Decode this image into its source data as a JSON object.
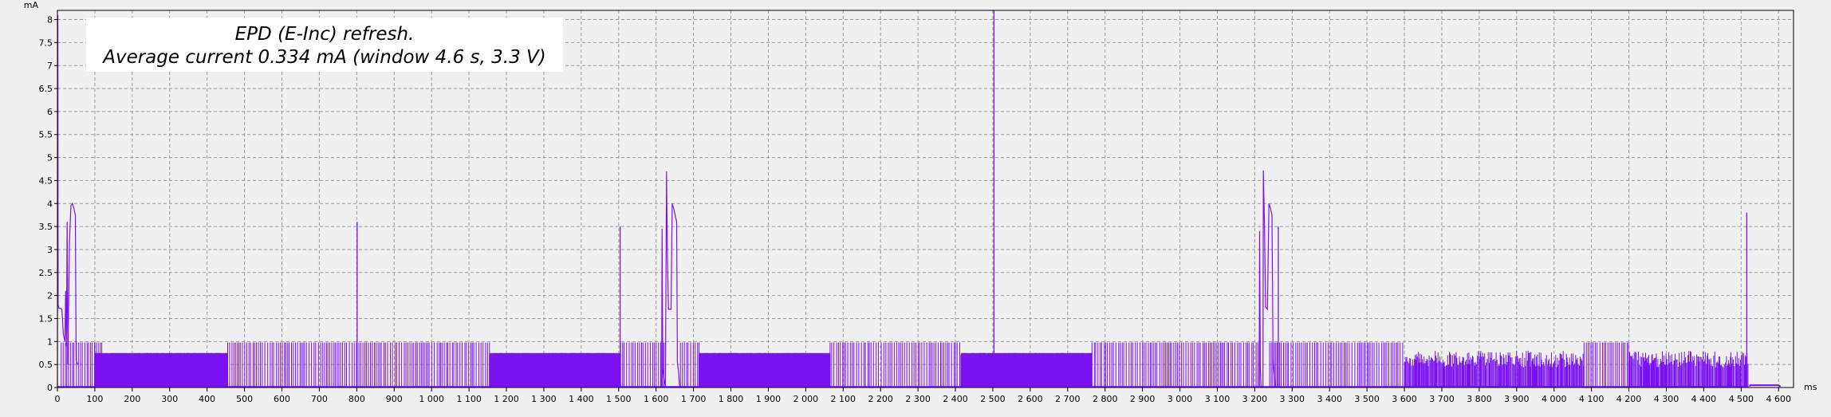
{
  "chart_data": {
    "type": "line",
    "title_line1": "EPD (E-Inc) refresh.",
    "title_line2": "Average current 0.334 mA (window 4.6 s, 3.3 V)",
    "ylabel": "mA",
    "xlabel": "ms",
    "xlim": [
      0,
      4640
    ],
    "ylim": [
      0,
      8.2
    ],
    "grid": true,
    "colors": {
      "series": "#7b11f0",
      "axis": "#000000",
      "grid": "#9a9a9a",
      "plot_bg": "#f0f0f0"
    },
    "y_ticks": [
      {
        "value": 0,
        "label": "0"
      },
      {
        "value": 0.5,
        "label": "0.5"
      },
      {
        "value": 1,
        "label": "1"
      },
      {
        "value": 1.5,
        "label": "1.5"
      },
      {
        "value": 2,
        "label": "2"
      },
      {
        "value": 2.5,
        "label": "2.5"
      },
      {
        "value": 3,
        "label": "3"
      },
      {
        "value": 3.5,
        "label": "3.5"
      },
      {
        "value": 4,
        "label": "4"
      },
      {
        "value": 4.5,
        "label": "4.5"
      },
      {
        "value": 5,
        "label": "5"
      },
      {
        "value": 5.5,
        "label": "5.5"
      },
      {
        "value": 6,
        "label": "6"
      },
      {
        "value": 6.5,
        "label": "6.5"
      },
      {
        "value": 7,
        "label": "7"
      },
      {
        "value": 7.5,
        "label": "7.5"
      },
      {
        "value": 8,
        "label": "8"
      }
    ],
    "x_ticks": [
      {
        "value": 0,
        "label": "0"
      },
      {
        "value": 100,
        "label": "100"
      },
      {
        "value": 200,
        "label": "200"
      },
      {
        "value": 300,
        "label": "300"
      },
      {
        "value": 400,
        "label": "400"
      },
      {
        "value": 500,
        "label": "500"
      },
      {
        "value": 600,
        "label": "600"
      },
      {
        "value": 700,
        "label": "700"
      },
      {
        "value": 800,
        "label": "800"
      },
      {
        "value": 900,
        "label": "900"
      },
      {
        "value": 1000,
        "label": "1 000"
      },
      {
        "value": 1100,
        "label": "1 100"
      },
      {
        "value": 1200,
        "label": "1 200"
      },
      {
        "value": 1300,
        "label": "1 300"
      },
      {
        "value": 1400,
        "label": "1 400"
      },
      {
        "value": 1500,
        "label": "1 500"
      },
      {
        "value": 1600,
        "label": "1 600"
      },
      {
        "value": 1700,
        "label": "1 700"
      },
      {
        "value": 1800,
        "label": "1 800"
      },
      {
        "value": 1900,
        "label": "1 900"
      },
      {
        "value": 2000,
        "label": "2 000"
      },
      {
        "value": 2100,
        "label": "2 100"
      },
      {
        "value": 2200,
        "label": "2 200"
      },
      {
        "value": 2300,
        "label": "2 300"
      },
      {
        "value": 2400,
        "label": "2 400"
      },
      {
        "value": 2500,
        "label": "2 500"
      },
      {
        "value": 2600,
        "label": "2 600"
      },
      {
        "value": 2700,
        "label": "2 700"
      },
      {
        "value": 2800,
        "label": "2 800"
      },
      {
        "value": 2900,
        "label": "2 900"
      },
      {
        "value": 3000,
        "label": "3 000"
      },
      {
        "value": 3100,
        "label": "3 100"
      },
      {
        "value": 3200,
        "label": "3 200"
      },
      {
        "value": 3300,
        "label": "3 300"
      },
      {
        "value": 3400,
        "label": "3 400"
      },
      {
        "value": 3500,
        "label": "3 500"
      },
      {
        "value": 3600,
        "label": "3 600"
      },
      {
        "value": 3700,
        "label": "3 700"
      },
      {
        "value": 3800,
        "label": "3 800"
      },
      {
        "value": 3900,
        "label": "3 900"
      },
      {
        "value": 4000,
        "label": "4 000"
      },
      {
        "value": 4100,
        "label": "4 100"
      },
      {
        "value": 4200,
        "label": "4 200"
      },
      {
        "value": 4300,
        "label": "4 300"
      },
      {
        "value": 4400,
        "label": "4 400"
      },
      {
        "value": 4500,
        "label": "4 500"
      },
      {
        "value": 4600,
        "label": "4 600"
      }
    ],
    "series": [
      {
        "baseline_mA": 0.02,
        "pulse_trains": [
          {
            "start_ms": 10,
            "end_ms": 120,
            "low_mA": 0.02,
            "high_mA": 0.98,
            "density": "sparse"
          },
          {
            "start_ms": 100,
            "end_ms": 455,
            "low_mA": 0.02,
            "high_mA": 0.75,
            "density": "dense"
          },
          {
            "start_ms": 455,
            "end_ms": 1155,
            "low_mA": 0.02,
            "high_mA": 0.98,
            "density": "sparse"
          },
          {
            "start_ms": 1155,
            "end_ms": 1505,
            "low_mA": 0.02,
            "high_mA": 0.75,
            "density": "dense"
          },
          {
            "start_ms": 1505,
            "end_ms": 1625,
            "low_mA": 0.02,
            "high_mA": 0.98,
            "density": "sparse"
          },
          {
            "start_ms": 1665,
            "end_ms": 1715,
            "low_mA": 0.02,
            "high_mA": 0.98,
            "density": "sparse"
          },
          {
            "start_ms": 1715,
            "end_ms": 2065,
            "low_mA": 0.02,
            "high_mA": 0.75,
            "density": "dense"
          },
          {
            "start_ms": 2065,
            "end_ms": 2415,
            "low_mA": 0.02,
            "high_mA": 0.98,
            "density": "sparse"
          },
          {
            "start_ms": 2415,
            "end_ms": 2765,
            "low_mA": 0.02,
            "high_mA": 0.75,
            "density": "dense"
          },
          {
            "start_ms": 2765,
            "end_ms": 3215,
            "low_mA": 0.02,
            "high_mA": 0.98,
            "density": "sparse"
          },
          {
            "start_ms": 3240,
            "end_ms": 3600,
            "low_mA": 0.02,
            "high_mA": 0.98,
            "density": "sparse"
          },
          {
            "start_ms": 3600,
            "end_ms": 4080,
            "low_mA": 0.02,
            "high_mA": 0.8,
            "density": "medium"
          },
          {
            "start_ms": 4080,
            "end_ms": 4200,
            "low_mA": 0.02,
            "high_mA": 0.98,
            "density": "sparse"
          },
          {
            "start_ms": 4200,
            "end_ms": 4520,
            "low_mA": 0.02,
            "high_mA": 0.8,
            "density": "medium"
          }
        ],
        "segments": [
          [
            [
              0,
              0.02
            ],
            [
              1,
              8.1
            ],
            [
              2,
              1.8
            ],
            [
              4,
              1.72
            ],
            [
              8,
              1.72
            ],
            [
              12,
              1.7
            ],
            [
              16,
              1.15
            ],
            [
              20,
              1.0
            ],
            [
              22,
              2.1
            ],
            [
              24,
              0.9
            ],
            [
              26,
              3.6
            ],
            [
              28,
              0.5
            ],
            [
              32,
              3.1
            ],
            [
              36,
              3.95
            ],
            [
              40,
              4.0
            ],
            [
              44,
              3.9
            ],
            [
              48,
              3.75
            ],
            [
              50,
              0.6
            ],
            [
              52,
              0.55
            ],
            [
              55,
              0.5
            ]
          ],
          [
            [
              1615,
              0.02
            ],
            [
              1616,
              3.45
            ],
            [
              1618,
              0.4
            ],
            [
              1621,
              0.2
            ],
            [
              1625,
              0.02
            ],
            [
              1628,
              4.7
            ],
            [
              1630,
              3.0
            ],
            [
              1633,
              1.7
            ],
            [
              1640,
              1.7
            ],
            [
              1643,
              4.0
            ],
            [
              1647,
              3.9
            ],
            [
              1651,
              3.75
            ],
            [
              1655,
              3.6
            ],
            [
              1657,
              0.55
            ],
            [
              1660,
              0.35
            ],
            [
              1663,
              0.02
            ]
          ],
          [
            [
              3212,
              0.02
            ],
            [
              3213,
              3.4
            ],
            [
              3215,
              0.4
            ],
            [
              3217,
              0.02
            ],
            [
              3222,
              0.02
            ],
            [
              3223,
              4.72
            ],
            [
              3226,
              3.5
            ],
            [
              3229,
              1.75
            ],
            [
              3234,
              1.7
            ],
            [
              3238,
              4.0
            ],
            [
              3242,
              3.9
            ],
            [
              3246,
              3.75
            ],
            [
              3249,
              0.55
            ],
            [
              3252,
              0.3
            ],
            [
              3255,
              0.02
            ]
          ]
        ],
        "spikes": [
          {
            "x_ms": 801,
            "peak_mA": 3.6
          },
          {
            "x_ms": 1504,
            "peak_mA": 3.5
          },
          {
            "x_ms": 2503,
            "peak_mA": 8.2
          },
          {
            "x_ms": 3263,
            "peak_mA": 3.5
          },
          {
            "x_ms": 4515,
            "peak_mA": 3.8
          }
        ],
        "tail": [
          [
            4523,
            0.02
          ],
          [
            4524,
            0.05
          ],
          [
            4600,
            0.05
          ],
          [
            4605,
            0.02
          ]
        ]
      }
    ]
  }
}
